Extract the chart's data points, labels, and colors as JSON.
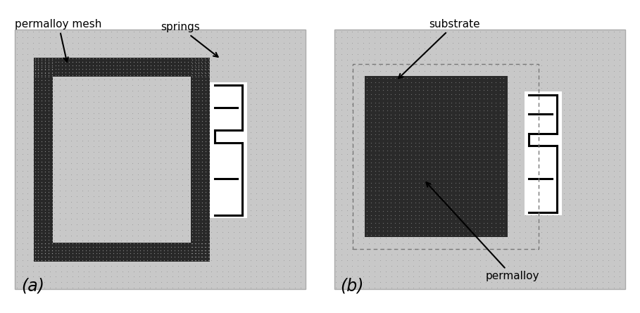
{
  "fig_width": 9.09,
  "fig_height": 4.45,
  "bg_color": "#ffffff",
  "panel_bg": "#c8c8c8",
  "dot_color_light": "#888888",
  "dot_color_dark": "#666666",
  "frame_fill": "#282828",
  "permalloy_fill": "#383838",
  "white_color": "#ffffff",
  "label_a": "(a)",
  "label_b": "(b)",
  "label_permalloy_mesh": "permalloy mesh",
  "label_springs": "springs",
  "label_substrate": "substrate",
  "label_permalloy": "permalloy"
}
